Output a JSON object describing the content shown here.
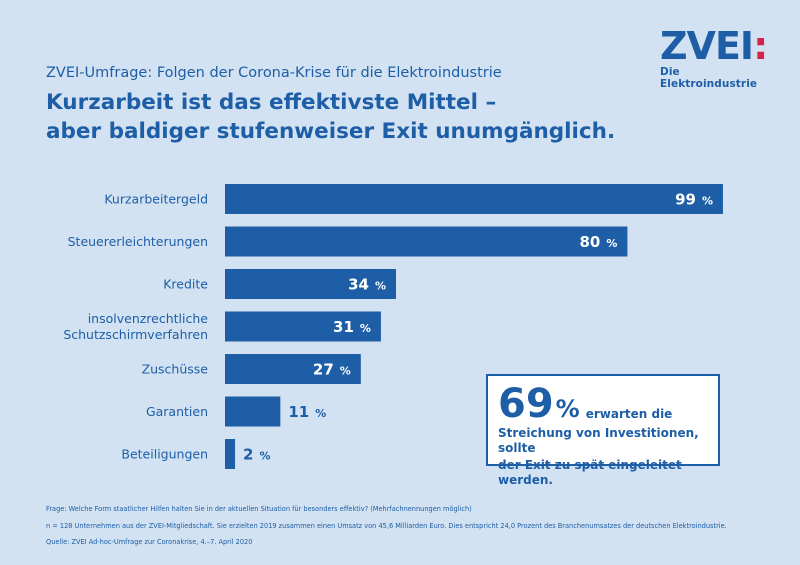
{
  "logo": {
    "mark": "ZVEI",
    "colon": ":",
    "subline": "Die Elektroindustrie"
  },
  "subtitle": "ZVEI-Umfrage: Folgen der Corona-Krise für die Elektroindustrie",
  "headline": {
    "line1": "Kurzarbeit ist das effektivste Mittel –",
    "line2": "aber baldiger stufenweiser Exit unumgänglich."
  },
  "chart_data": {
    "type": "bar",
    "orientation": "horizontal",
    "categories": [
      [
        "Kurzarbeitergeld"
      ],
      [
        "Steuererleichterungen"
      ],
      [
        "Kredite"
      ],
      [
        "insolvenzrechtliche",
        "Schutzschirmverfahren"
      ],
      [
        "Zuschüsse"
      ],
      [
        "Garantien"
      ],
      [
        "Beteiligungen"
      ]
    ],
    "values": [
      99,
      80,
      34,
      31,
      27,
      11,
      2
    ],
    "unit": "%",
    "xlim": [
      0,
      100
    ],
    "title": "",
    "xlabel": "",
    "ylabel": "",
    "colors": {
      "bar": "#1d5ea6",
      "label_inside": "#ffffff",
      "label_outside": "#1d5ea6"
    }
  },
  "callout": {
    "big": "69",
    "pct": "%",
    "text1": "erwarten die",
    "text2": "Streichung von Investitionen, sollte",
    "text3": "der Exit zu spät eingeleitet werden."
  },
  "footnotes": {
    "question": "Frage: Welche Form staatlicher Hilfen halten Sie in der aktuellen Situation für besonders effektiv? (Mehrfachnennungen möglich)",
    "sample": "n = 128 Unternehmen aus der ZVEI-Mitgliedschaft. Sie erzielten 2019 zusammen einen Umsatz von 45,6 Milliarden Euro. Dies entspricht 24,0 Prozent des Branchenumsatzes der deutschen Elektroindustrie.",
    "source": "Quelle: ZVEI Ad-hoc-Umfrage zur Coronakrise, 4.–7. April 2020"
  }
}
